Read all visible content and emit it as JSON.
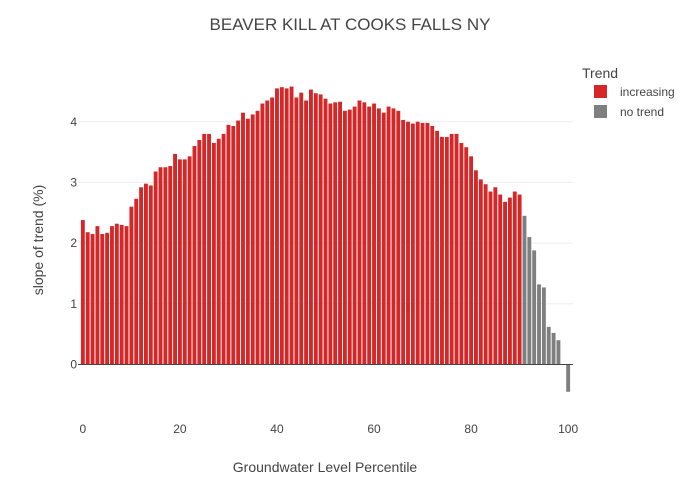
{
  "chart_data": {
    "type": "bar",
    "title": "BEAVER KILL AT COOKS FALLS NY",
    "xlabel": "Groundwater Level Percentile",
    "ylabel": "slope of trend (%)",
    "xlim": [
      -1,
      101
    ],
    "ylim": [
      -0.75,
      5.1
    ],
    "x_ticks": [
      0,
      20,
      40,
      60,
      80,
      100
    ],
    "y_ticks": [
      0,
      1,
      2,
      3,
      4
    ],
    "grid": true,
    "legend": {
      "title": "Trend",
      "placement": "top-right",
      "entries": [
        {
          "label": "increasing",
          "color": "#d62728"
        },
        {
          "label": "no trend",
          "color": "#7f7f7f"
        }
      ]
    },
    "series": [
      {
        "name": "increasing",
        "color": "#d62728",
        "x": [
          0,
          1,
          2,
          3,
          4,
          5,
          6,
          7,
          8,
          9,
          10,
          11,
          12,
          13,
          14,
          15,
          16,
          17,
          18,
          19,
          20,
          21,
          22,
          23,
          24,
          25,
          26,
          27,
          28,
          29,
          30,
          31,
          32,
          33,
          34,
          35,
          36,
          37,
          38,
          39,
          40,
          41,
          42,
          43,
          44,
          45,
          46,
          47,
          48,
          49,
          50,
          51,
          52,
          53,
          54,
          55,
          56,
          57,
          58,
          59,
          60,
          61,
          62,
          63,
          64,
          65,
          66,
          67,
          68,
          69,
          70,
          71,
          72,
          73,
          74,
          75,
          76,
          77,
          78,
          79,
          80,
          81,
          82,
          83,
          84,
          85,
          86,
          87,
          88,
          89,
          90
        ],
        "values": [
          2.38,
          2.18,
          2.15,
          2.28,
          2.15,
          2.17,
          2.28,
          2.32,
          2.3,
          2.28,
          2.6,
          2.73,
          2.92,
          2.98,
          2.95,
          3.18,
          3.25,
          3.25,
          3.27,
          3.47,
          3.38,
          3.38,
          3.43,
          3.6,
          3.7,
          3.8,
          3.8,
          3.65,
          3.72,
          3.8,
          3.95,
          3.93,
          4.02,
          4.15,
          4.05,
          4.12,
          4.18,
          4.3,
          4.35,
          4.4,
          4.55,
          4.57,
          4.55,
          4.58,
          4.4,
          4.48,
          4.35,
          4.53,
          4.47,
          4.45,
          4.38,
          4.3,
          4.32,
          4.33,
          4.18,
          4.2,
          4.25,
          4.35,
          4.32,
          4.25,
          4.3,
          4.22,
          4.15,
          4.25,
          4.22,
          4.18,
          4.03,
          4.0,
          3.97,
          4.0,
          3.98,
          3.98,
          3.93,
          3.85,
          3.75,
          3.75,
          3.8,
          3.8,
          3.65,
          3.58,
          3.43,
          3.2,
          3.05,
          2.97,
          2.85,
          2.92,
          2.8,
          2.68,
          2.75,
          2.85,
          2.8
        ]
      },
      {
        "name": "no trend",
        "color": "#7f7f7f",
        "x": [
          91,
          92,
          93,
          94,
          95,
          96,
          97,
          98,
          99,
          100
        ],
        "values": [
          2.45,
          2.1,
          1.88,
          1.32,
          1.27,
          0.62,
          0.52,
          0.4,
          0.0,
          -0.45
        ]
      }
    ]
  }
}
